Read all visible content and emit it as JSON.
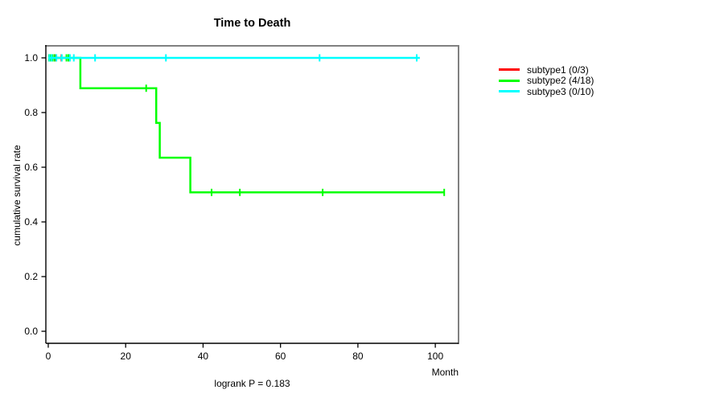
{
  "chart_data": {
    "type": "line",
    "subtype": "kaplan-meier-step-survival",
    "title": "Time to Death",
    "xlabel": "Month",
    "ylabel": "cumulative survival rate",
    "footnote": "logrank P = 0.183",
    "xlim": [
      -0.62,
      106.0
    ],
    "ylim": [
      -0.044,
      1.044
    ],
    "xticks": [
      0,
      20,
      40,
      60,
      80,
      100
    ],
    "yticks": [
      0.0,
      0.2,
      0.4,
      0.6,
      0.8,
      1.0
    ],
    "grid": false,
    "legend_position": "right-outside",
    "colors": {
      "box": "#808080",
      "axis": "#000000",
      "text": "#000000",
      "subtype1": "#ff0000",
      "subtype2": "#00ff00",
      "subtype3": "#00ffff"
    },
    "series": [
      {
        "name": "subtype1 (0/3)",
        "color": "#ff0000",
        "events": "0/3",
        "points": [
          [
            0,
            1.0
          ],
          [
            5.4,
            1.0
          ]
        ],
        "censored": [
          [
            1.9,
            1.0
          ],
          [
            3.4,
            1.0
          ],
          [
            5.4,
            1.0
          ]
        ]
      },
      {
        "name": "subtype2 (4/18)",
        "color": "#00ff00",
        "events": "4/18",
        "points": [
          [
            0,
            1.0
          ],
          [
            8.3,
            1.0
          ],
          [
            8.3,
            0.8889
          ],
          [
            27.9,
            0.8889
          ],
          [
            27.9,
            0.7619
          ],
          [
            28.8,
            0.7619
          ],
          [
            28.8,
            0.6349
          ],
          [
            36.7,
            0.6349
          ],
          [
            36.7,
            0.5079
          ],
          [
            102.3,
            0.5079
          ]
        ],
        "censored": [
          [
            0.2,
            1.0
          ],
          [
            0.6,
            1.0
          ],
          [
            1.1,
            1.0
          ],
          [
            1.6,
            1.0
          ],
          [
            4.7,
            1.0
          ],
          [
            5.2,
            1.0
          ],
          [
            25.3,
            0.8889
          ],
          [
            42.2,
            0.5079
          ],
          [
            49.5,
            0.5079
          ],
          [
            70.9,
            0.5079
          ],
          [
            102.3,
            0.5079
          ]
        ]
      },
      {
        "name": "subtype3 (0/10)",
        "color": "#00ffff",
        "events": "0/10",
        "points": [
          [
            0,
            1.0
          ],
          [
            96.0,
            1.0
          ]
        ],
        "censored": [
          [
            0.3,
            1.0
          ],
          [
            0.9,
            1.0
          ],
          [
            2.1,
            1.0
          ],
          [
            3.5,
            1.0
          ],
          [
            5.6,
            1.0
          ],
          [
            6.6,
            1.0
          ],
          [
            12.1,
            1.0
          ],
          [
            30.4,
            1.0
          ],
          [
            70.1,
            1.0
          ],
          [
            95.2,
            1.0
          ]
        ]
      }
    ],
    "legend": [
      {
        "label": "subtype1 (0/3)",
        "color": "#ff0000"
      },
      {
        "label": "subtype2 (4/18)",
        "color": "#00ff00"
      },
      {
        "label": "subtype3 (0/10)",
        "color": "#00ffff"
      }
    ]
  }
}
